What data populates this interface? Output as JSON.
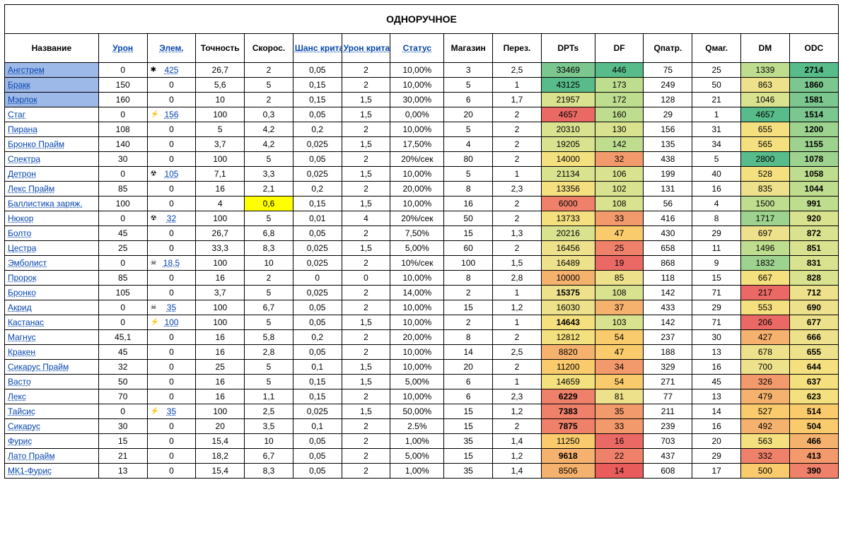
{
  "title": "ОДНОРУЧНОЕ",
  "headers": [
    {
      "label": "Название",
      "link": false,
      "bold": false
    },
    {
      "label": "Урон",
      "link": true,
      "bold": false
    },
    {
      "label": "Элем.",
      "link": true,
      "bold": false
    },
    {
      "label": "Точность",
      "link": false,
      "bold": false
    },
    {
      "label": "Скорос.",
      "link": false,
      "bold": false
    },
    {
      "label": "Шанс крита",
      "link": true,
      "bold": false
    },
    {
      "label": "Урон крита",
      "link": true,
      "bold": false
    },
    {
      "label": "Статус",
      "link": true,
      "bold": false
    },
    {
      "label": "Магазин",
      "link": false,
      "bold": false
    },
    {
      "label": "Перез.",
      "link": false,
      "bold": false
    },
    {
      "label": "DPTs",
      "link": false,
      "bold": true
    },
    {
      "label": "DF",
      "link": false,
      "bold": true
    },
    {
      "label": "Qпатр.",
      "link": false,
      "bold": true
    },
    {
      "label": "Qмаг.",
      "link": false,
      "bold": true
    },
    {
      "label": "DM",
      "link": false,
      "bold": true
    },
    {
      "label": "ODC",
      "link": false,
      "bold": true
    }
  ],
  "palette": {
    "green5": "#57bb8a",
    "green4": "#7cc68f",
    "green3": "#9ed28f",
    "green2": "#bfdd8f",
    "green1": "#d9e28f",
    "yellow2": "#ede18b",
    "yellow1": "#f5e07f",
    "yellowPure": "#ffff00",
    "orange3": "#f9cb6c",
    "orange2": "#f5b16e",
    "orange1": "#f29a6c",
    "red2": "#ef816b",
    "red1": "#ea6964",
    "red0": "#e85c5c"
  },
  "rows": [
    {
      "hl": true,
      "name": "Ангстрем",
      "cells": [
        "0",
        {
          "v": "425",
          "icon": "✱",
          "link": true
        },
        "26,7",
        "2",
        "0,05",
        "2",
        "10,00%",
        "3",
        "2,5",
        {
          "v": "33469",
          "bg": "green4"
        },
        {
          "v": "446",
          "bg": "green5"
        },
        "75",
        "25",
        {
          "v": "1339",
          "bg": "green2"
        },
        {
          "v": "2714",
          "bg": "green5",
          "bold": true
        }
      ]
    },
    {
      "hl": true,
      "name": "Бракк",
      "cells": [
        "150",
        "0",
        "5,6",
        "5",
        "0,15",
        "2",
        "10,00%",
        "5",
        "1",
        {
          "v": "43125",
          "bg": "green5"
        },
        {
          "v": "173",
          "bg": "green2"
        },
        "249",
        "50",
        {
          "v": "863",
          "bg": "yellow2"
        },
        {
          "v": "1860",
          "bg": "green4",
          "bold": true
        }
      ]
    },
    {
      "hl": true,
      "name": "Мэрлок",
      "cells": [
        "160",
        "0",
        "10",
        "2",
        "0,15",
        "1,5",
        "30,00%",
        "6",
        "1,7",
        {
          "v": "21957",
          "bg": "green1"
        },
        {
          "v": "172",
          "bg": "green2"
        },
        "128",
        "21",
        {
          "v": "1046",
          "bg": "green1"
        },
        {
          "v": "1581",
          "bg": "green4",
          "bold": true
        }
      ]
    },
    {
      "name": "Стаг",
      "cells": [
        "0",
        {
          "v": "156",
          "icon": "⚡",
          "link": true
        },
        "100",
        "0,3",
        "0,05",
        "1,5",
        "0,00%",
        "20",
        "2",
        {
          "v": "4657",
          "bg": "red1"
        },
        {
          "v": "160",
          "bg": "green2"
        },
        "29",
        "1",
        {
          "v": "4657",
          "bg": "green5"
        },
        {
          "v": "1514",
          "bg": "green4",
          "bold": true
        }
      ]
    },
    {
      "name": "Пирана",
      "cells": [
        "108",
        "0",
        "5",
        "4,2",
        "0,2",
        "2",
        "10,00%",
        "5",
        "2",
        {
          "v": "20310",
          "bg": "green1"
        },
        {
          "v": "130",
          "bg": "green1"
        },
        "156",
        "31",
        {
          "v": "655",
          "bg": "yellow1"
        },
        {
          "v": "1200",
          "bg": "green3",
          "bold": true
        }
      ]
    },
    {
      "name": "Бронко Прайм",
      "cells": [
        "140",
        "0",
        "3,7",
        "4,2",
        "0,025",
        "1,5",
        "17,50%",
        "4",
        "2",
        {
          "v": "19205",
          "bg": "green1"
        },
        {
          "v": "142",
          "bg": "green2"
        },
        "135",
        "34",
        {
          "v": "565",
          "bg": "yellow1"
        },
        {
          "v": "1155",
          "bg": "green3",
          "bold": true
        }
      ]
    },
    {
      "name": "Спектра",
      "cells": [
        "30",
        "0",
        "100",
        "5",
        "0,05",
        "2",
        "20%/сек",
        "80",
        "2",
        {
          "v": "14000",
          "bg": "yellow1"
        },
        {
          "v": "32",
          "bg": "orange1"
        },
        "438",
        "5",
        {
          "v": "2800",
          "bg": "green5"
        },
        {
          "v": "1078",
          "bg": "green3",
          "bold": true
        }
      ]
    },
    {
      "name": "Детрон",
      "cells": [
        "0",
        {
          "v": "105",
          "icon": "☢",
          "link": true
        },
        "7,1",
        "3,3",
        "0,025",
        "1,5",
        "10,00%",
        "5",
        "1",
        {
          "v": "21134",
          "bg": "green1"
        },
        {
          "v": "106",
          "bg": "green1"
        },
        "199",
        "40",
        {
          "v": "528",
          "bg": "yellow1"
        },
        {
          "v": "1058",
          "bg": "green2",
          "bold": true
        }
      ]
    },
    {
      "name": "Лекс Прайм",
      "cells": [
        "85",
        "0",
        "16",
        "2,1",
        "0,2",
        "2",
        "20,00%",
        "8",
        "2,3",
        {
          "v": "13356",
          "bg": "yellow1"
        },
        {
          "v": "102",
          "bg": "green1"
        },
        "131",
        "16",
        {
          "v": "835",
          "bg": "yellow2"
        },
        {
          "v": "1044",
          "bg": "green2",
          "bold": true
        }
      ]
    },
    {
      "name": "Баллистика заряж.",
      "cells": [
        "100",
        "0",
        "4",
        {
          "v": "0,6",
          "bg": "yellowPure"
        },
        "0,15",
        "1,5",
        "10,00%",
        "16",
        "2",
        {
          "v": "6000",
          "bg": "red2"
        },
        {
          "v": "108",
          "bg": "green1"
        },
        "56",
        "4",
        {
          "v": "1500",
          "bg": "green2"
        },
        {
          "v": "991",
          "bg": "green2",
          "bold": true
        }
      ]
    },
    {
      "name": "Нюкор",
      "cells": [
        "0",
        {
          "v": "32",
          "icon": "☢",
          "link": true
        },
        "100",
        "5",
        "0,01",
        "4",
        "20%/сек",
        "50",
        "2",
        {
          "v": "13733",
          "bg": "yellow1"
        },
        {
          "v": "33",
          "bg": "orange1"
        },
        "416",
        "8",
        {
          "v": "1717",
          "bg": "green3"
        },
        {
          "v": "920",
          "bg": "green1",
          "bold": true
        }
      ]
    },
    {
      "name": "Болто",
      "cells": [
        "45",
        "0",
        "26,7",
        "6,8",
        "0,05",
        "2",
        "7,50%",
        "15",
        "1,3",
        {
          "v": "20216",
          "bg": "green1"
        },
        {
          "v": "47",
          "bg": "orange3"
        },
        "430",
        "29",
        {
          "v": "697",
          "bg": "yellow2"
        },
        {
          "v": "872",
          "bg": "green1",
          "bold": true
        }
      ]
    },
    {
      "name": "Цестра",
      "cells": [
        "25",
        "0",
        "33,3",
        "8,3",
        "0,025",
        "1,5",
        "5,00%",
        "60",
        "2",
        {
          "v": "16456",
          "bg": "yellow2"
        },
        {
          "v": "25",
          "bg": "red2"
        },
        "658",
        "11",
        {
          "v": "1496",
          "bg": "green2"
        },
        {
          "v": "851",
          "bg": "green1",
          "bold": true
        }
      ]
    },
    {
      "name": "Эмболист",
      "cells": [
        "0",
        {
          "v": "18,5",
          "icon": "☠",
          "link": true
        },
        "100",
        "10",
        "0,025",
        "2",
        "10%/сек",
        "100",
        "1,5",
        {
          "v": "16489",
          "bg": "yellow2"
        },
        {
          "v": "19",
          "bg": "red1"
        },
        "868",
        "9",
        {
          "v": "1832",
          "bg": "green3"
        },
        {
          "v": "831",
          "bg": "green1",
          "bold": true
        }
      ]
    },
    {
      "name": "Пророк",
      "cells": [
        "85",
        "0",
        "16",
        "2",
        "0",
        "0",
        "10,00%",
        "8",
        "2,8",
        {
          "v": "10000",
          "bg": "orange2"
        },
        {
          "v": "85",
          "bg": "yellow2"
        },
        "118",
        "15",
        {
          "v": "667",
          "bg": "yellow1"
        },
        {
          "v": "828",
          "bg": "green1",
          "bold": true
        }
      ]
    },
    {
      "name": "Бронко",
      "cells": [
        "105",
        "0",
        "3,7",
        "5",
        "0,025",
        "2",
        "14,00%",
        "2",
        "1",
        {
          "v": "15375",
          "bg": "yellow2",
          "bold": true
        },
        {
          "v": "108",
          "bg": "green1"
        },
        "142",
        "71",
        {
          "v": "217",
          "bg": "red1"
        },
        {
          "v": "712",
          "bg": "yellow2",
          "bold": true
        }
      ]
    },
    {
      "name": "Акрид",
      "cells": [
        "0",
        {
          "v": "35",
          "icon": "☠",
          "link": true
        },
        "100",
        "6,7",
        "0,05",
        "2",
        "10,00%",
        "15",
        "1,2",
        {
          "v": "16030",
          "bg": "yellow2"
        },
        {
          "v": "37",
          "bg": "orange2"
        },
        "433",
        "29",
        {
          "v": "553",
          "bg": "yellow1"
        },
        {
          "v": "690",
          "bg": "yellow2",
          "bold": true
        }
      ]
    },
    {
      "name": "Кастанас",
      "cells": [
        "0",
        {
          "v": "100",
          "icon": "⚡",
          "link": true
        },
        "100",
        "5",
        "0,05",
        "1,5",
        "10,00%",
        "2",
        "1",
        {
          "v": "14643",
          "bg": "yellow1",
          "bold": true
        },
        {
          "v": "103",
          "bg": "green1"
        },
        "142",
        "71",
        {
          "v": "206",
          "bg": "red1"
        },
        {
          "v": "677",
          "bg": "yellow2",
          "bold": true
        }
      ]
    },
    {
      "name": "Магнус",
      "cells": [
        "45,1",
        "0",
        "16",
        "5,8",
        "0,2",
        "2",
        "20,00%",
        "8",
        "2",
        {
          "v": "12812",
          "bg": "yellow1"
        },
        {
          "v": "54",
          "bg": "orange3"
        },
        "237",
        "30",
        {
          "v": "427",
          "bg": "orange2"
        },
        {
          "v": "666",
          "bg": "yellow2",
          "bold": true
        }
      ]
    },
    {
      "name": "Кракен",
      "cells": [
        "45",
        "0",
        "16",
        "2,8",
        "0,05",
        "2",
        "10,00%",
        "14",
        "2,5",
        {
          "v": "8820",
          "bg": "orange2"
        },
        {
          "v": "47",
          "bg": "orange3"
        },
        "188",
        "13",
        {
          "v": "678",
          "bg": "yellow2"
        },
        {
          "v": "655",
          "bg": "yellow2",
          "bold": true
        }
      ]
    },
    {
      "name": "Сикарус Прайм",
      "cells": [
        "32",
        "0",
        "25",
        "5",
        "0,1",
        "1,5",
        "10,00%",
        "20",
        "2",
        {
          "v": "11200",
          "bg": "orange3"
        },
        {
          "v": "34",
          "bg": "orange1"
        },
        "329",
        "16",
        {
          "v": "700",
          "bg": "yellow2"
        },
        {
          "v": "644",
          "bg": "yellow1",
          "bold": true
        }
      ]
    },
    {
      "name": "Васто",
      "cells": [
        "50",
        "0",
        "16",
        "5",
        "0,15",
        "1,5",
        "5,00%",
        "6",
        "1",
        {
          "v": "14659",
          "bg": "yellow1"
        },
        {
          "v": "54",
          "bg": "orange3"
        },
        "271",
        "45",
        {
          "v": "326",
          "bg": "orange1"
        },
        {
          "v": "637",
          "bg": "yellow1",
          "bold": true
        }
      ]
    },
    {
      "name": "Лекс",
      "cells": [
        "70",
        "0",
        "16",
        "1,1",
        "0,15",
        "2",
        "10,00%",
        "6",
        "2,3",
        {
          "v": "6229",
          "bg": "red2",
          "bold": true
        },
        {
          "v": "81",
          "bg": "yellow2"
        },
        "77",
        "13",
        {
          "v": "479",
          "bg": "orange2"
        },
        {
          "v": "623",
          "bg": "yellow1",
          "bold": true
        }
      ]
    },
    {
      "name": "Тайсис",
      "cells": [
        "0",
        {
          "v": "35",
          "icon": "⚡",
          "link": true
        },
        "100",
        "2,5",
        "0,025",
        "1,5",
        "50,00%",
        "15",
        "1,2",
        {
          "v": "7383",
          "bg": "red2",
          "bold": true
        },
        {
          "v": "35",
          "bg": "orange1"
        },
        "211",
        "14",
        {
          "v": "527",
          "bg": "orange3"
        },
        {
          "v": "514",
          "bg": "orange3",
          "bold": true
        }
      ]
    },
    {
      "name": "Сикарус",
      "cells": [
        "30",
        "0",
        "20",
        "3,5",
        "0,1",
        "2",
        "2.5%",
        "15",
        "2",
        {
          "v": "7875",
          "bg": "red2",
          "bold": true
        },
        {
          "v": "33",
          "bg": "orange1"
        },
        "239",
        "16",
        {
          "v": "492",
          "bg": "orange2"
        },
        {
          "v": "504",
          "bg": "orange3",
          "bold": true
        }
      ]
    },
    {
      "name": "Фурис",
      "cells": [
        "15",
        "0",
        "15,4",
        "10",
        "0,05",
        "2",
        "1,00%",
        "35",
        "1,4",
        {
          "v": "11250",
          "bg": "orange3"
        },
        {
          "v": "16",
          "bg": "red1"
        },
        "703",
        "20",
        {
          "v": "563",
          "bg": "yellow1"
        },
        {
          "v": "466",
          "bg": "orange2",
          "bold": true
        }
      ]
    },
    {
      "name": "Лато Прайм",
      "cells": [
        "21",
        "0",
        "18,2",
        "6,7",
        "0,05",
        "2",
        "5,00%",
        "15",
        "1,2",
        {
          "v": "9618",
          "bg": "orange2",
          "bold": true
        },
        {
          "v": "22",
          "bg": "red2"
        },
        "437",
        "29",
        {
          "v": "332",
          "bg": "red2"
        },
        {
          "v": "413",
          "bg": "orange1",
          "bold": true
        }
      ]
    },
    {
      "name": "МК1-Фурис",
      "cells": [
        "13",
        "0",
        "15,4",
        "8,3",
        "0,05",
        "2",
        "1,00%",
        "35",
        "1,4",
        {
          "v": "8506",
          "bg": "orange2"
        },
        {
          "v": "14",
          "bg": "red0"
        },
        "608",
        "17",
        {
          "v": "500",
          "bg": "orange3"
        },
        {
          "v": "390",
          "bg": "red2",
          "bold": true
        }
      ]
    }
  ]
}
